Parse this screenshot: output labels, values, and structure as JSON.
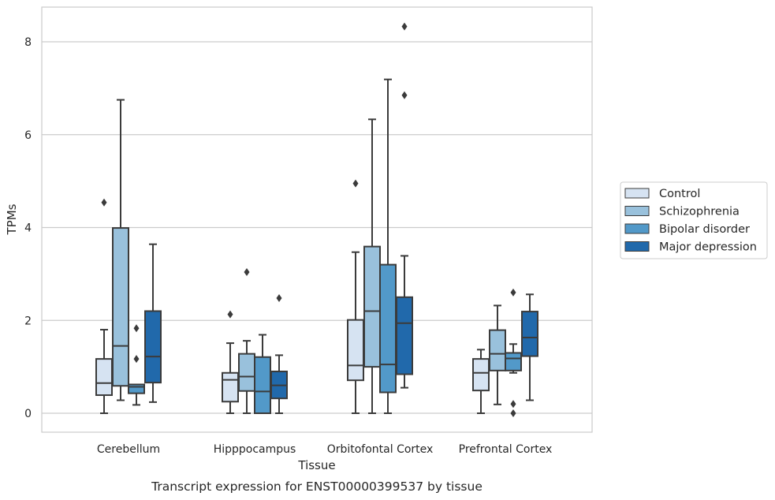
{
  "chart_data": {
    "type": "box",
    "title": "",
    "caption": "Transcript expression for ENST00000399537 by tissue",
    "xlabel": "Tissue",
    "ylabel": "TPMs",
    "ylim": [
      -0.4,
      8.75
    ],
    "yticks": [
      0,
      2,
      4,
      6,
      8
    ],
    "grid": "horizontal",
    "legend_position": "right",
    "categories": [
      "Cerebellum",
      "Hipppocampus",
      "Orbitofontal Cortex",
      "Prefrontal Cortex"
    ],
    "series": [
      {
        "name": "Control",
        "color": "#d6e3f2",
        "boxes": [
          {
            "whisker_low": 0.0,
            "q1": 0.39,
            "median": 0.65,
            "q3": 1.17,
            "whisker_high": 1.8,
            "outliers": [
              4.54
            ]
          },
          {
            "whisker_low": 0.0,
            "q1": 0.25,
            "median": 0.72,
            "q3": 0.87,
            "whisker_high": 1.51,
            "outliers": [
              2.13
            ]
          },
          {
            "whisker_low": 0.0,
            "q1": 0.71,
            "median": 1.03,
            "q3": 2.01,
            "whisker_high": 3.47,
            "outliers": [
              4.95
            ]
          },
          {
            "whisker_low": 0.0,
            "q1": 0.49,
            "median": 0.87,
            "q3": 1.17,
            "whisker_high": 1.37,
            "outliers": []
          }
        ]
      },
      {
        "name": "Schizophrenia",
        "color": "#99c1dc",
        "boxes": [
          {
            "whisker_low": 0.28,
            "q1": 0.59,
            "median": 1.45,
            "q3": 3.99,
            "whisker_high": 6.75,
            "outliers": []
          },
          {
            "whisker_low": 0.0,
            "q1": 0.48,
            "median": 0.79,
            "q3": 1.28,
            "whisker_high": 1.56,
            "outliers": [
              3.04
            ]
          },
          {
            "whisker_low": 0.0,
            "q1": 1.0,
            "median": 2.2,
            "q3": 3.59,
            "whisker_high": 6.33,
            "outliers": []
          },
          {
            "whisker_low": 0.19,
            "q1": 0.92,
            "median": 1.28,
            "q3": 1.79,
            "whisker_high": 2.32,
            "outliers": []
          }
        ]
      },
      {
        "name": "Bipolar disorder",
        "color": "#5299c9",
        "boxes": [
          {
            "whisker_low": 0.18,
            "q1": 0.43,
            "median": 0.57,
            "q3": 0.62,
            "whisker_high": 0.62,
            "outliers": [
              1.83,
              1.17
            ]
          },
          {
            "whisker_low": 0.0,
            "q1": 0.0,
            "median": 0.47,
            "q3": 1.21,
            "whisker_high": 1.69,
            "outliers": []
          },
          {
            "whisker_low": 0.0,
            "q1": 0.45,
            "median": 1.05,
            "q3": 3.2,
            "whisker_high": 7.19,
            "outliers": []
          },
          {
            "whisker_low": 0.87,
            "q1": 0.92,
            "median": 1.18,
            "q3": 1.3,
            "whisker_high": 1.49,
            "outliers": [
              2.6,
              0.2,
              0.0
            ]
          }
        ]
      },
      {
        "name": "Major depression",
        "color": "#2169ab",
        "boxes": [
          {
            "whisker_low": 0.24,
            "q1": 0.66,
            "median": 1.22,
            "q3": 2.2,
            "whisker_high": 3.64,
            "outliers": []
          },
          {
            "whisker_low": 0.0,
            "q1": 0.32,
            "median": 0.6,
            "q3": 0.9,
            "whisker_high": 1.25,
            "outliers": [
              2.48
            ]
          },
          {
            "whisker_low": 0.55,
            "q1": 0.84,
            "median": 1.94,
            "q3": 2.5,
            "whisker_high": 3.39,
            "outliers": [
              8.33,
              6.85
            ]
          },
          {
            "whisker_low": 0.28,
            "q1": 1.23,
            "median": 1.63,
            "q3": 2.19,
            "whisker_high": 2.56,
            "outliers": []
          }
        ]
      }
    ]
  }
}
